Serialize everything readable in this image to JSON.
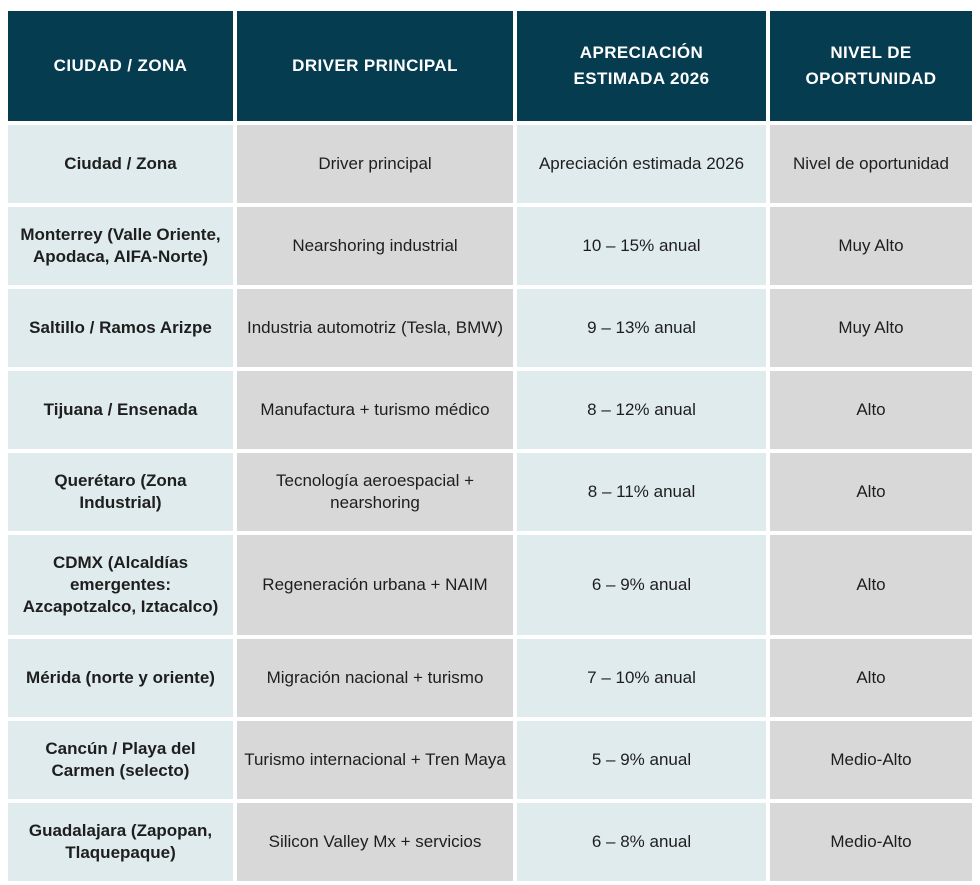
{
  "header": [
    "CIUDAD / ZONA",
    "DRIVER PRINCIPAL",
    "APRECIACIÓN ESTIMADA 2026",
    "NIVEL DE OPORTUNIDAD"
  ],
  "rows": [
    {
      "zona": "Ciudad / Zona",
      "driver": "Driver principal",
      "apreciacion": "Apreciación estimada 2026",
      "nivel": "Nivel de oportunidad"
    },
    {
      "zona": "Monterrey (Valle Oriente, Apodaca, AIFA-Norte)",
      "driver": "Nearshoring industrial",
      "apreciacion": "10 – 15% anual",
      "nivel": "Muy Alto"
    },
    {
      "zona": "Saltillo / Ramos Arizpe",
      "driver": "Industria automotriz (Tesla, BMW)",
      "apreciacion": "9 – 13% anual",
      "nivel": "Muy Alto"
    },
    {
      "zona": "Tijuana / Ensenada",
      "driver": "Manufactura + turismo médico",
      "apreciacion": "8 – 12% anual",
      "nivel": "Alto"
    },
    {
      "zona": "Querétaro (Zona Industrial)",
      "driver": "Tecnología aeroespacial + nearshoring",
      "apreciacion": "8 – 11% anual",
      "nivel": "Alto"
    },
    {
      "zona": "CDMX (Alcaldías emergentes: Azcapotzalco, Iztacalco)",
      "driver": "Regeneración urbana + NAIM",
      "apreciacion": "6 – 9% anual",
      "nivel": "Alto"
    },
    {
      "zona": "Mérida (norte y oriente)",
      "driver": "Migración nacional + turismo",
      "apreciacion": "7 – 10% anual",
      "nivel": "Alto"
    },
    {
      "zona": "Cancún / Playa del Carmen (selecto)",
      "driver": "Turismo internacional + Tren Maya",
      "apreciacion": "5 – 9% anual",
      "nivel": "Medio-Alto"
    },
    {
      "zona": "Guadalajara (Zapopan, Tlaquepaque)",
      "driver": "Silicon Valley Mx + servicios",
      "apreciacion": "6 – 8% anual",
      "nivel": "Medio-Alto"
    }
  ],
  "colors": {
    "header_bg": "#063c4f",
    "header_text": "#ffffff",
    "light_col_bg": "#e0ebed",
    "gray_col_bg": "#d8d8d8"
  }
}
